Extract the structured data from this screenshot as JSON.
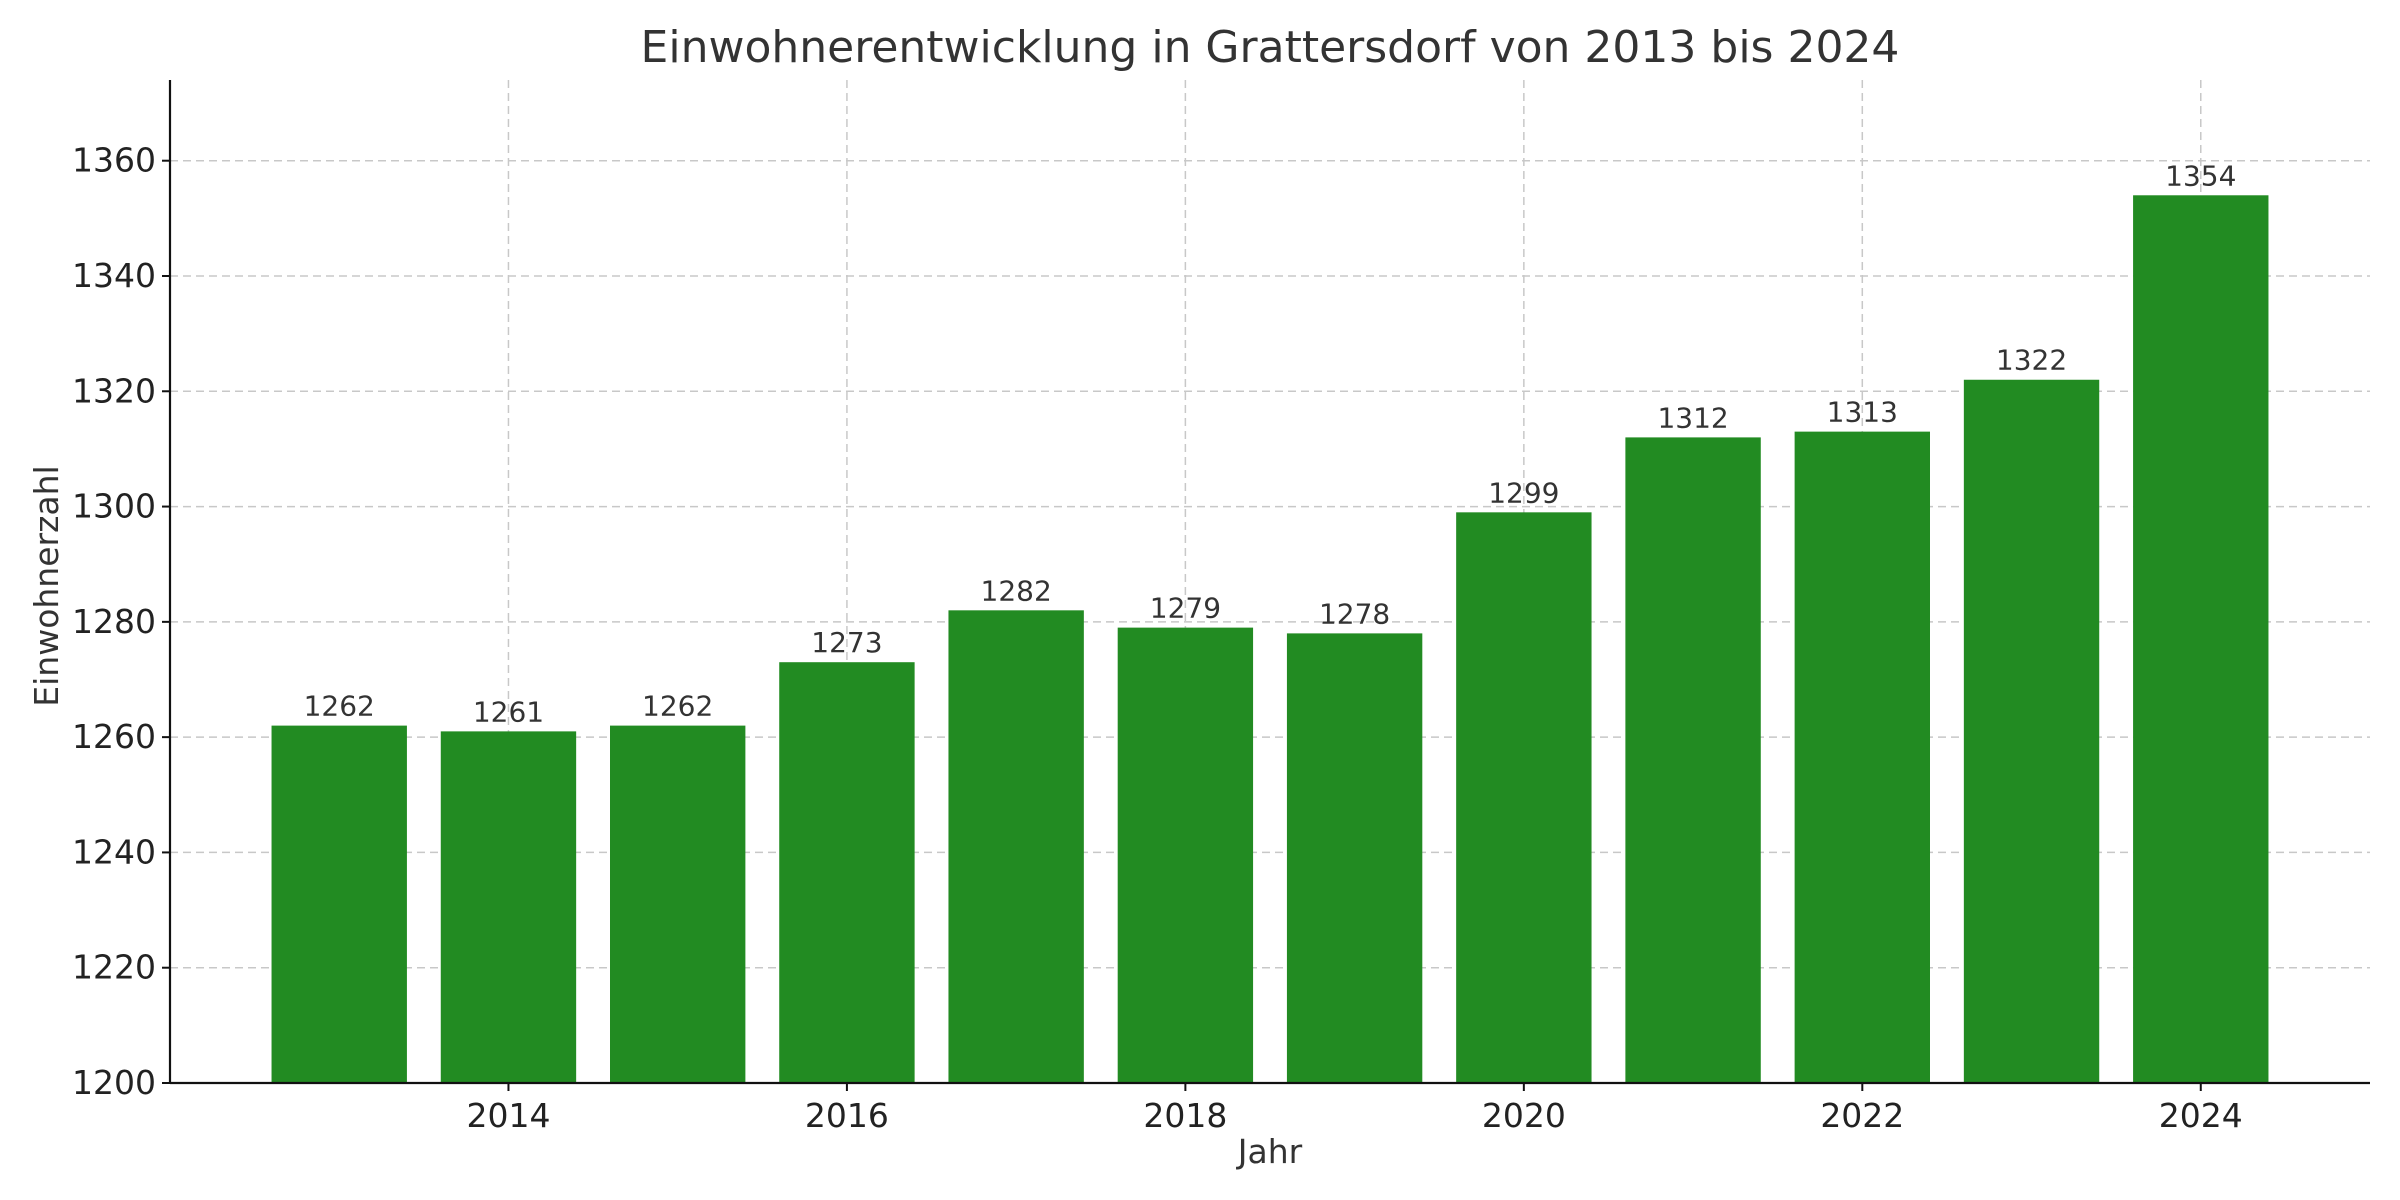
{
  "chart_data": {
    "type": "bar",
    "title": "Einwohnerentwicklung in Grattersdorf von 2013 bis 2024",
    "xlabel": "Jahr",
    "ylabel": "Einwohnerzahl",
    "categories": [
      2013,
      2014,
      2015,
      2016,
      2017,
      2018,
      2019,
      2020,
      2021,
      2022,
      2023,
      2024
    ],
    "values": [
      1262,
      1261,
      1262,
      1273,
      1282,
      1279,
      1278,
      1299,
      1312,
      1313,
      1322,
      1354
    ],
    "x_ticks": [
      2014,
      2016,
      2018,
      2020,
      2022,
      2024
    ],
    "y_ticks": [
      1200,
      1220,
      1240,
      1260,
      1280,
      1300,
      1320,
      1340,
      1360
    ],
    "xlim": [
      2012.0,
      2025.0
    ],
    "ylim": [
      1200,
      1374
    ],
    "bar_width": 0.8,
    "bar_color": "#228b22",
    "grid": true,
    "grid_style": "dashed",
    "legend": "none"
  }
}
